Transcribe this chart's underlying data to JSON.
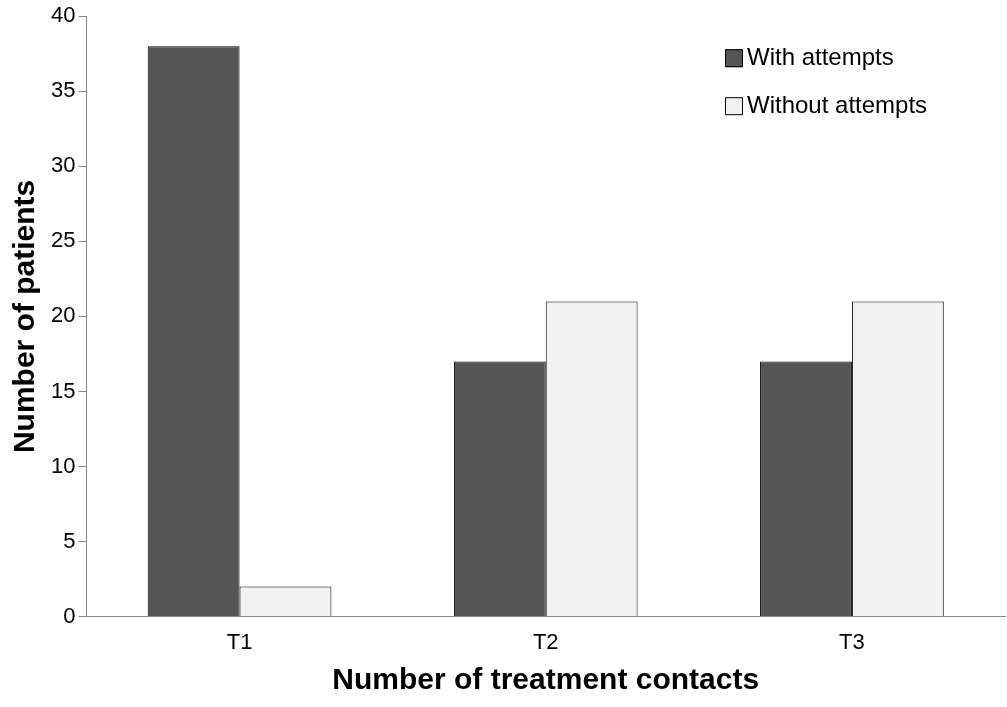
{
  "chart_data": {
    "type": "bar",
    "xlabel": "Number of treatment contacts",
    "ylabel": "Number of patients",
    "categories": [
      "T1",
      "T2",
      "T3"
    ],
    "series": [
      {
        "name": "With attempts",
        "color": "#555555",
        "values": [
          38,
          17,
          17
        ]
      },
      {
        "name": "Without attempts",
        "color": "#f2f2f2",
        "values": [
          2,
          21,
          21
        ]
      }
    ],
    "ylim": [
      0,
      40
    ],
    "yticks": [
      0,
      5,
      10,
      15,
      20,
      25,
      30,
      35,
      40
    ],
    "grid": false,
    "legend": "top right"
  }
}
